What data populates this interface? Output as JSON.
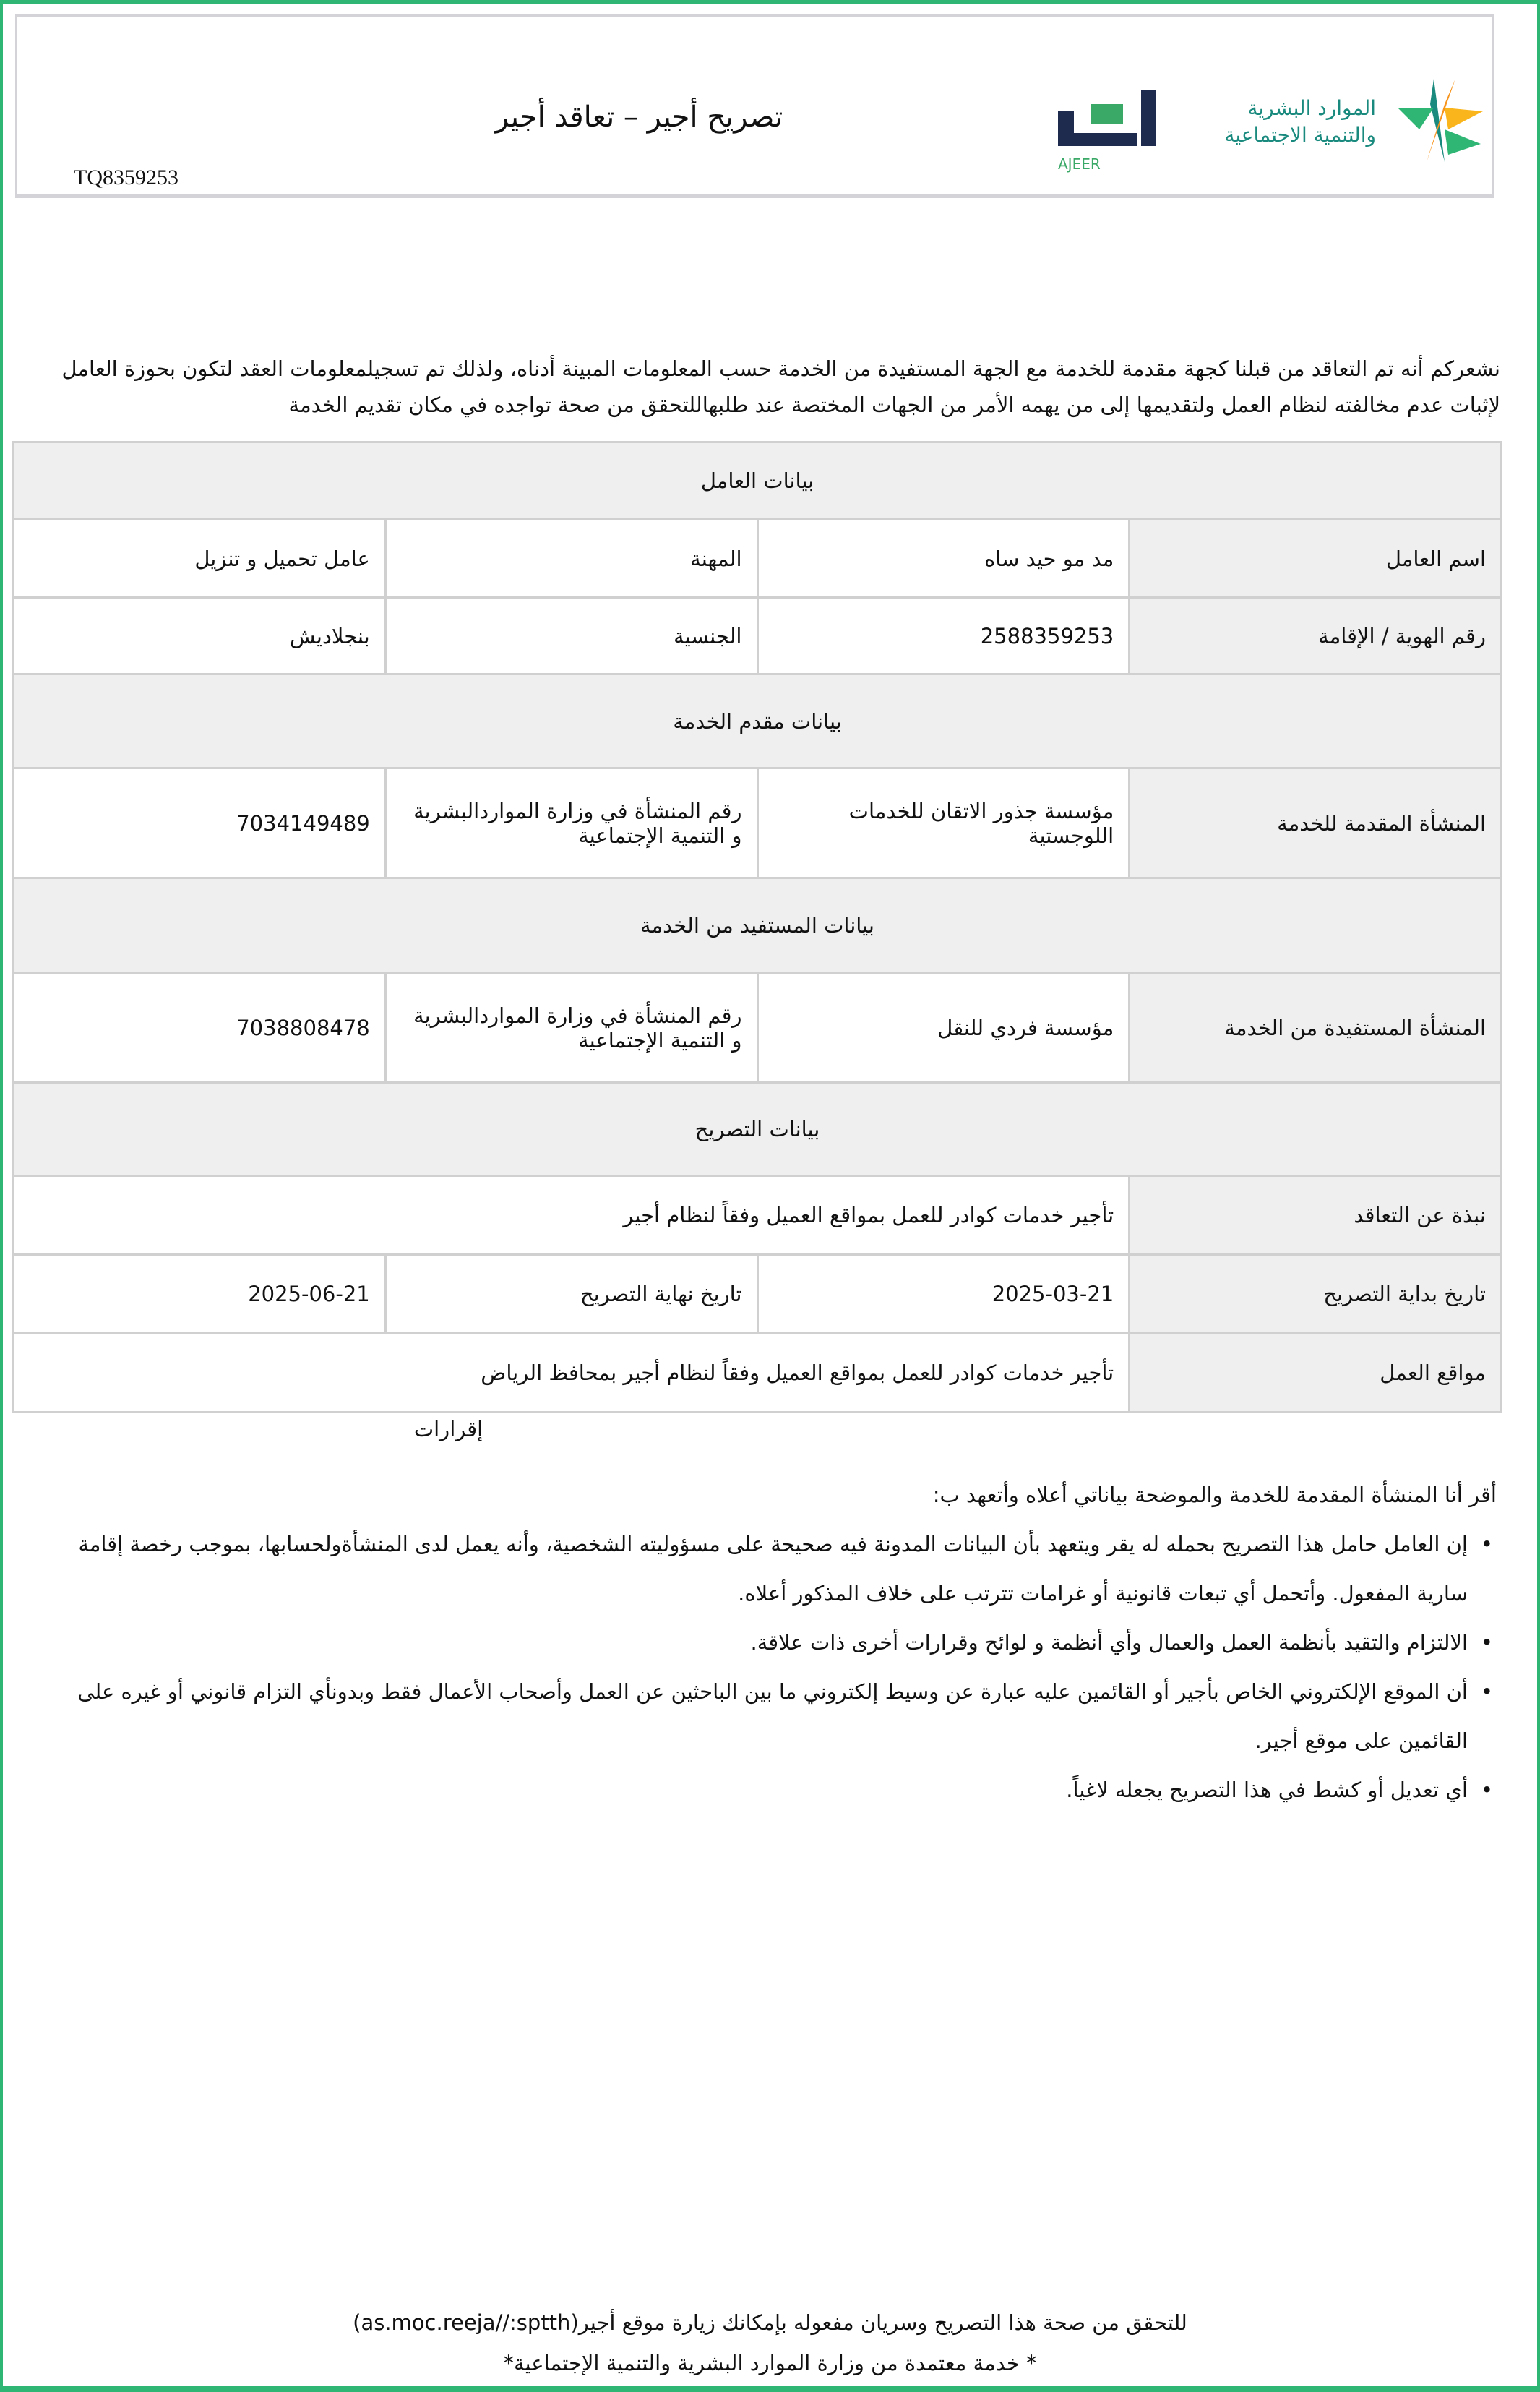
{
  "header": {
    "title": "تصريح أجير –  تعاقد أجير",
    "reference": "TQ8359253",
    "ajeer_logo_text": "أجير",
    "ajeer_logo_latin": "AJEER",
    "ministry_logo_text": "الموارد البشرية والتنمية الاجتماعية"
  },
  "intro": "نشعركم أنه تم التعاقد من قبلنا كجهة مقدمة للخدمة مع الجهة المستفيدة من الخدمة حسب المعلومات المبينة أدناه، ولذلك تم تسجيلمعلومات العقد لتكون بحوزة العامل لإثبات عدم مخالفته لنظام العمل ولتقديمها إلى من يهمه الأمر من الجهات المختصة عند طلبهاللتحقق من صحة تواجده في مكان تقديم الخدمة",
  "worker": {
    "section": "بيانات العامل",
    "name_label": "اسم العامل",
    "name": "مد مو حيد ساه",
    "job_label": "المهنة",
    "job": "عامل تحميل و تنزيل",
    "id_label": "رقم الهوية / الإقامة",
    "id": "2588359253",
    "nationality_label": "الجنسية",
    "nationality": "بنجلاديش"
  },
  "provider": {
    "section": "بيانات مقدم الخدمة",
    "org_label": "المنشأة المقدمة للخدمة",
    "org": "مؤسسة جذور الاتقان للخدمات اللوجستية",
    "num_label": "رقم المنشأة في وزارة المواردالبشرية و التنمية الإجتماعية",
    "num": "7034149489"
  },
  "beneficiary": {
    "section": "بيانات المستفيد من الخدمة",
    "org_label": "المنشأة المستفيدة من الخدمة",
    "org": "مؤسسة فردي للنقل",
    "num_label": "رقم المنشأة في وزارة المواردالبشرية و التنمية الإجتماعية",
    "num": "7038808478"
  },
  "permit": {
    "section": "بيانات التصريح",
    "summary_label": "نبذة عن التعاقد",
    "summary": "تأجير خدمات كوادر للعمل بمواقع العميل وفقاً لنظام أجير",
    "start_label": "تاريخ بداية التصريح",
    "start": "2025-03-21",
    "end_label": "تاريخ نهاية التصريح",
    "end": "2025-06-21",
    "locations_label": "مواقع العمل",
    "locations": "تأجير خدمات كوادر للعمل بمواقع العميل وفقاً لنظام أجير بمحافظ الرياض"
  },
  "declarations": {
    "title": "إقرارات",
    "intro": "أقر أنا المنشأة المقدمة للخدمة والموضحة بياناتي أعلاه وأتعهد ب:",
    "items": [
      "إن العامل حامل هذا التصريح بحمله له يقر ويتعهد بأن البيانات المدونة فيه صحيحة على مسؤوليته الشخصية، وأنه يعمل لدى المنشأةولحسابها، بموجب رخصة إقامة سارية المفعول. وأتحمل أي تبعات قانونية أو غرامات تترتب على خلاف المذكور أعلاه.",
      "الالتزام والتقيد بأنظمة العمل والعمال وأي أنظمة و لوائح وقرارات أخرى ذات علاقة.",
      "أن الموقع الإلكتروني الخاص بأجير أو القائمين عليه عبارة عن وسيط إلكتروني ما بين الباحثين عن العمل وأصحاب الأعمال فقط وبدونأي التزام قانوني أو غيره على القائمين على موقع أجير.",
      "أي تعديل أو كشط في هذا التصريح يجعله لاغياً."
    ]
  },
  "footer": {
    "verify": "للتحقق من صحة هذا التصريح وسريان مفعوله بإمكانك زيارة موقع أجير(as.moc.reeja//:sptth)",
    "approved": "* خدمة معتمدة من وزارة الموارد البشرية والتنمية الإجتماعية*"
  },
  "colors": {
    "frame": "#2fb574",
    "ajeer_navy": "#1f2a4f",
    "ajeer_green": "#3aa866",
    "ministry_teal": "#1a8a7e",
    "ministry_orange": "#f7941d"
  }
}
